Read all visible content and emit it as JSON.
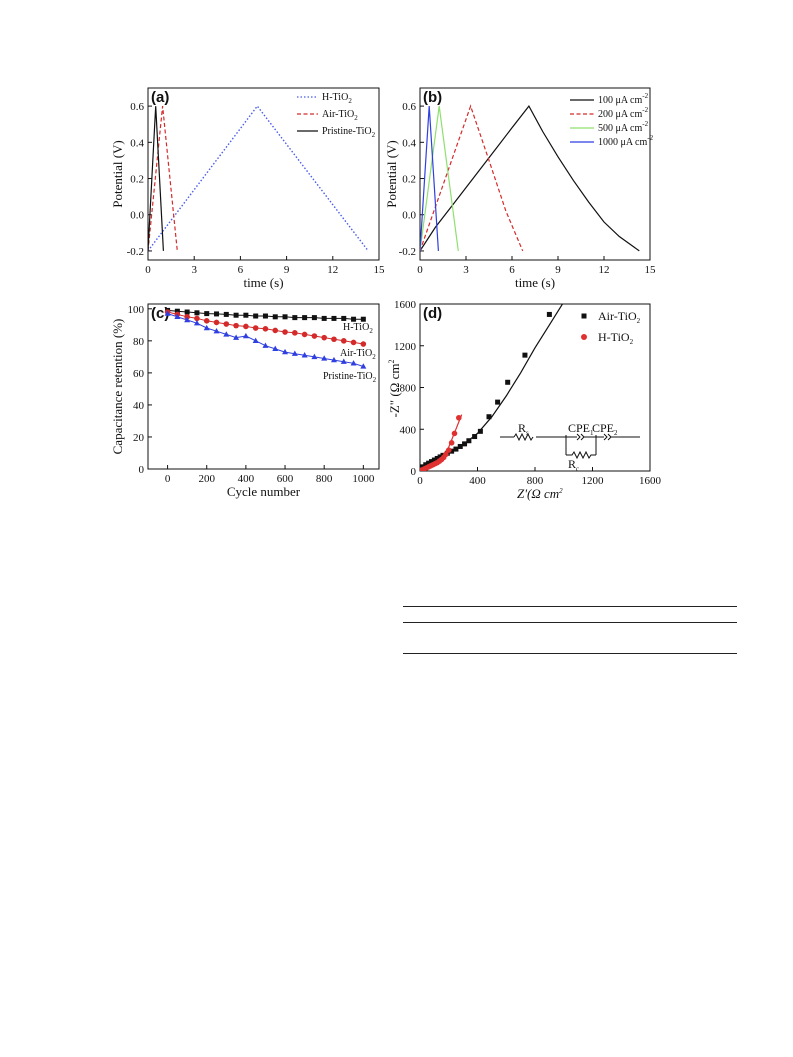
{
  "colors": {
    "black": "#111111",
    "red": "#d42a2a",
    "blue": "#2f3fe0",
    "blue_dotted": "#4a5de8",
    "green": "#8ee06e",
    "red_marker": "#e03030"
  },
  "chart_data": [
    {
      "id": "a",
      "type": "line",
      "panel_label": "(a)",
      "xlabel": "time (s)",
      "ylabel": "Potential (V)",
      "xlim": [
        0,
        15
      ],
      "ylim": [
        -0.25,
        0.7
      ],
      "xticks": [
        "0",
        "3",
        "6",
        "9",
        "12",
        "15"
      ],
      "xtick_values": [
        0,
        3,
        6,
        9,
        12,
        15
      ],
      "yticks": [
        "-0.2",
        "0.0",
        "0.2",
        "0.4",
        "0.6"
      ],
      "ytick_values": [
        -0.2,
        0.0,
        0.2,
        0.4,
        0.6
      ],
      "legend": [
        "H-TiO",
        "Air-TiO",
        "Pristine-TiO"
      ],
      "legend_sub": "2",
      "series": [
        {
          "name": "H-TiO2",
          "style": "dotted",
          "color_key": "blue_dotted",
          "x": [
            0,
            7.1,
            14.3
          ],
          "y": [
            -0.2,
            0.6,
            -0.2
          ]
        },
        {
          "name": "Air-TiO2",
          "style": "dashed",
          "color_key": "red",
          "x": [
            0,
            0.95,
            1.9
          ],
          "y": [
            -0.2,
            0.6,
            -0.2
          ]
        },
        {
          "name": "Pristine-TiO2",
          "style": "solid",
          "color_key": "black",
          "x": [
            0,
            0.5,
            1.0
          ],
          "y": [
            -0.2,
            0.6,
            -0.2
          ]
        }
      ]
    },
    {
      "id": "b",
      "type": "line",
      "panel_label": "(b)",
      "xlabel": "time (s)",
      "ylabel": "Potential (V)",
      "xlim": [
        0,
        15
      ],
      "ylim": [
        -0.25,
        0.7
      ],
      "xticks": [
        "0",
        "3",
        "6",
        "9",
        "12",
        "15"
      ],
      "xtick_values": [
        0,
        3,
        6,
        9,
        12,
        15
      ],
      "yticks": [
        "-0.2",
        "0.0",
        "0.2",
        "0.4",
        "0.6"
      ],
      "ytick_values": [
        -0.2,
        0.0,
        0.2,
        0.4,
        0.6
      ],
      "legend": [
        "100 μA cm",
        "200 μA cm",
        "500 μA cm",
        "1000 μA cm"
      ],
      "legend_sup": "-2",
      "series": [
        {
          "name": "100 μA cm-2",
          "style": "solid",
          "color_key": "black",
          "x": [
            0,
            1,
            2,
            3,
            4,
            5,
            6,
            7.1,
            8,
            9,
            10,
            11,
            12,
            13,
            14.3
          ],
          "y": [
            -0.2,
            -0.07,
            0.04,
            0.15,
            0.26,
            0.37,
            0.48,
            0.6,
            0.46,
            0.32,
            0.19,
            0.07,
            -0.04,
            -0.12,
            -0.2
          ]
        },
        {
          "name": "200 μA cm-2",
          "style": "dashed",
          "color_key": "red",
          "x": [
            0,
            3.3,
            4.5,
            5.6,
            6.7
          ],
          "y": [
            -0.2,
            0.6,
            0.3,
            0.02,
            -0.2
          ]
        },
        {
          "name": "500 μA cm-2",
          "style": "solid",
          "color_key": "green",
          "x": [
            0,
            1.25,
            2.5
          ],
          "y": [
            -0.2,
            0.6,
            -0.2
          ]
        },
        {
          "name": "1000 μA cm-2",
          "style": "solid",
          "color_key": "blue",
          "x": [
            0,
            0.6,
            1.2
          ],
          "y": [
            -0.2,
            0.6,
            -0.2
          ]
        }
      ]
    },
    {
      "id": "c",
      "type": "line",
      "panel_label": "(c)",
      "xlabel": "Cycle number",
      "ylabel": "Capacitance retention (%)",
      "xlim": [
        -100,
        1080
      ],
      "ylim": [
        0,
        103
      ],
      "xticks": [
        "0",
        "200",
        "400",
        "600",
        "800",
        "1000"
      ],
      "xtick_values": [
        0,
        200,
        400,
        600,
        800,
        1000
      ],
      "yticks": [
        "0",
        "20",
        "40",
        "60",
        "80",
        "100"
      ],
      "ytick_values": [
        0,
        20,
        40,
        60,
        80,
        100
      ],
      "labels": [
        "H-TiO",
        "Air-TiO",
        "Pristine-TiO"
      ],
      "labels_sub": "2",
      "series": [
        {
          "name": "H-TiO2",
          "marker": "square",
          "color_key": "black",
          "x": [
            0,
            50,
            100,
            150,
            200,
            250,
            300,
            350,
            400,
            450,
            500,
            550,
            600,
            650,
            700,
            750,
            800,
            850,
            900,
            950,
            1000
          ],
          "y": [
            99,
            98.5,
            98,
            97.5,
            97,
            96.8,
            96.5,
            96,
            96,
            95.5,
            95.5,
            95,
            95,
            94.5,
            94.5,
            94.5,
            94,
            94,
            94,
            93.5,
            93.5
          ]
        },
        {
          "name": "Air-TiO2",
          "marker": "circle",
          "color_key": "red",
          "x": [
            0,
            50,
            100,
            150,
            200,
            250,
            300,
            350,
            400,
            450,
            500,
            550,
            600,
            650,
            700,
            750,
            800,
            850,
            900,
            950,
            1000
          ],
          "y": [
            98,
            96.5,
            95,
            94,
            92.5,
            91.5,
            90.5,
            89.5,
            89,
            88,
            87.5,
            86.5,
            85.5,
            85,
            84,
            83,
            82,
            81,
            80,
            79,
            78
          ]
        },
        {
          "name": "Pristine-TiO2",
          "marker": "triangle",
          "color_key": "blue",
          "x": [
            0,
            50,
            100,
            150,
            200,
            250,
            300,
            350,
            400,
            450,
            500,
            550,
            600,
            650,
            700,
            750,
            800,
            850,
            900,
            950,
            1000
          ],
          "y": [
            97,
            95,
            93,
            91,
            88,
            86,
            84,
            82,
            83,
            80,
            77,
            75,
            73,
            72,
            71,
            70,
            69,
            68,
            67,
            66,
            64
          ]
        }
      ]
    },
    {
      "id": "d",
      "type": "scatter",
      "panel_label": "(d)",
      "xlabel": "Z'(Ω cm",
      "ylabel": "-Z\" (Ω cm",
      "unit_sup": "2",
      "xlim": [
        0,
        1600
      ],
      "ylim": [
        0,
        1600
      ],
      "xticks": [
        "0",
        "400",
        "800",
        "1200",
        "1600"
      ],
      "xtick_values": [
        0,
        400,
        800,
        1200,
        1600
      ],
      "yticks": [
        "0",
        "400",
        "800",
        "1200",
        "1600"
      ],
      "ytick_values": [
        0,
        400,
        800,
        1200,
        1600
      ],
      "legend": [
        "Air-TiO",
        "H-TiO"
      ],
      "legend_sub": "2",
      "circuit": {
        "rs": "R",
        "rs_sub": "s",
        "cpe1": "CPE",
        "cpe1_sub": "1",
        "cpe2": "CPE",
        "cpe2_sub": "2",
        "rc": "R",
        "rc_sub": "c"
      },
      "series": [
        {
          "name": "Air-TiO2",
          "marker": "square",
          "color_key": "black",
          "x": [
            5,
            20,
            40,
            60,
            80,
            100,
            120,
            140,
            160,
            190,
            220,
            250,
            280,
            310,
            340,
            380,
            420,
            480,
            540,
            610,
            730,
            900
          ],
          "y": [
            10,
            40,
            60,
            75,
            90,
            105,
            120,
            135,
            150,
            170,
            190,
            210,
            235,
            260,
            290,
            330,
            380,
            520,
            660,
            850,
            1110,
            1500
          ],
          "fit_x": [
            0,
            100,
            200,
            300,
            400,
            500,
            600,
            700,
            800,
            900,
            1000
          ],
          "fit_y": [
            0,
            110,
            180,
            250,
            360,
            520,
            720,
            940,
            1180,
            1400,
            1620
          ]
        },
        {
          "name": "H-TiO2",
          "marker": "circle",
          "color_key": "red_marker",
          "x": [
            5,
            15,
            30,
            45,
            60,
            75,
            90,
            105,
            120,
            135,
            150,
            165,
            180,
            200,
            220,
            240,
            270
          ],
          "y": [
            5,
            10,
            20,
            30,
            40,
            50,
            60,
            70,
            80,
            95,
            110,
            130,
            160,
            200,
            270,
            360,
            510
          ],
          "fit_x": [
            0,
            50,
            100,
            150,
            200,
            250,
            290
          ],
          "fit_y": [
            0,
            35,
            70,
            120,
            230,
            400,
            540
          ]
        }
      ]
    }
  ]
}
